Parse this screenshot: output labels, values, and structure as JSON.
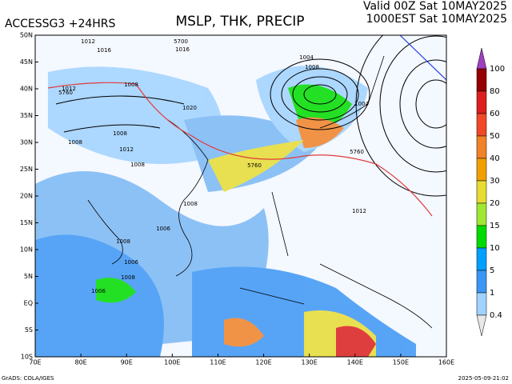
{
  "header": {
    "model": "ACCESSG3 +24HRS",
    "title": "MSLP, THK, PRECIP",
    "valid_utc": "Valid 00Z Sat 10MAY2025",
    "valid_local": "1000EST Sat 10MAY2025"
  },
  "map": {
    "latitude_labels": [
      "50N",
      "45N",
      "40N",
      "35N",
      "30N",
      "25N",
      "20N",
      "15N",
      "10N",
      "5N",
      "EQ",
      "5S",
      "10S"
    ],
    "longitude_labels": [
      "70E",
      "80E",
      "90E",
      "100E",
      "110E",
      "120E",
      "130E",
      "140E",
      "150E",
      "160E"
    ],
    "isobar_labels": [
      "1012",
      "1016",
      "1004",
      "1008",
      "1020",
      "1016",
      "1012",
      "1008",
      "1008",
      "1008",
      "1012",
      "1008",
      "1008",
      "1012",
      "1006",
      "1008",
      "1008",
      "1006",
      "1006",
      "1004"
    ],
    "thickness_labels": [
      "5760",
      "5700",
      "5760",
      "5760"
    ]
  },
  "colorbar": {
    "labels": [
      "100",
      "80",
      "60",
      "50",
      "40",
      "30",
      "20",
      "15",
      "10",
      "5",
      "1",
      "0.4"
    ],
    "colors": [
      "#a040c0",
      "#960000",
      "#dc1e1e",
      "#f04828",
      "#f08228",
      "#f0a000",
      "#e6dc32",
      "#a0e632",
      "#00dc00",
      "#00a0ff",
      "#3c96f5",
      "#a0d2ff",
      "#e8e8e8"
    ]
  },
  "footer": {
    "credit": "GrADS: COLA/IGES",
    "timestamp": "2025-05-09-21:02"
  }
}
